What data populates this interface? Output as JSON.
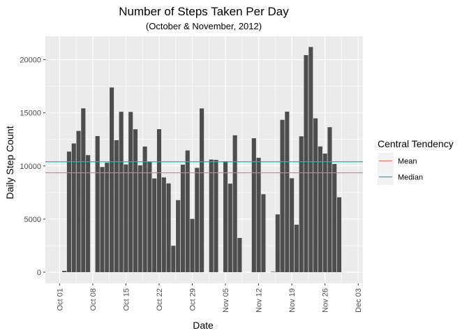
{
  "chart_data": {
    "type": "bar",
    "title": "Number of Steps Taken Per Day",
    "subtitle": "(October & November, 2012)",
    "xlabel": "Date",
    "ylabel": "Daily Step Count",
    "x_start": "2012-10-01",
    "x_end": "2012-11-30",
    "xlim": [
      "2012-09-28",
      "2012-12-04"
    ],
    "ylim": [
      -1050,
      22200
    ],
    "x_ticks": [
      {
        "date": "2012-10-01",
        "label": "Oct 01"
      },
      {
        "date": "2012-10-08",
        "label": "Oct 08"
      },
      {
        "date": "2012-10-15",
        "label": "Oct 15"
      },
      {
        "date": "2012-10-22",
        "label": "Oct 22"
      },
      {
        "date": "2012-10-29",
        "label": "Oct 29"
      },
      {
        "date": "2012-11-05",
        "label": "Nov 05"
      },
      {
        "date": "2012-11-12",
        "label": "Nov 12"
      },
      {
        "date": "2012-11-19",
        "label": "Nov 19"
      },
      {
        "date": "2012-11-26",
        "label": "Nov 26"
      },
      {
        "date": "2012-12-03",
        "label": "Dec 03"
      }
    ],
    "y_ticks": [
      {
        "value": 0,
        "label": "0"
      },
      {
        "value": 5000,
        "label": "5000"
      },
      {
        "value": 10000,
        "label": "10000"
      },
      {
        "value": 15000,
        "label": "15000"
      },
      {
        "value": 20000,
        "label": "20000"
      }
    ],
    "values": [
      0,
      126,
      11352,
      12116,
      13294,
      15420,
      11015,
      0,
      12811,
      9900,
      10304,
      17382,
      12426,
      15098,
      10139,
      15084,
      13452,
      10056,
      11829,
      10395,
      8821,
      13460,
      8918,
      8355,
      2492,
      6778,
      10119,
      11458,
      5018,
      9819,
      15414,
      0,
      10600,
      10571,
      0,
      10439,
      8334,
      12883,
      3219,
      0,
      0,
      12608,
      10765,
      7336,
      0,
      41,
      5441,
      14339,
      15110,
      8841,
      4472,
      12787,
      20427,
      21194,
      14478,
      11834,
      11162,
      13646,
      10183,
      7047,
      0
    ],
    "bar_color": "#4d4d4d",
    "grid": true,
    "panel_background": "#ebebeb",
    "reference_lines": [
      {
        "name": "Mean",
        "value": 9354.23,
        "color": "#f8766d"
      },
      {
        "name": "Median",
        "value": 10395,
        "color": "#00bfc4"
      }
    ],
    "legend": {
      "title": "Central Tendency",
      "placement": "right",
      "entries": [
        "Mean",
        "Median"
      ]
    }
  }
}
